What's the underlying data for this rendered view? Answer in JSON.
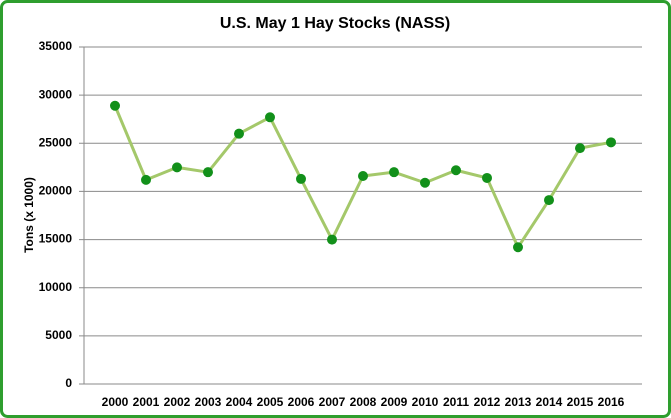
{
  "chart_data": {
    "type": "line",
    "title": "U.S. May 1 Hay Stocks (NASS)",
    "y_label": "Tons (x 1000)",
    "categories": [
      "2000",
      "2001",
      "2002",
      "2003",
      "2004",
      "2005",
      "2006",
      "2007",
      "2008",
      "2009",
      "2010",
      "2011",
      "2012",
      "2013",
      "2014",
      "2015",
      "2016"
    ],
    "values": [
      28900,
      21200,
      22500,
      22000,
      26000,
      27700,
      21300,
      15000,
      21600,
      22000,
      20900,
      22200,
      21400,
      14200,
      19100,
      24500,
      25100
    ],
    "color": "#a4c86a",
    "marker_color": "#12901a",
    "ylim": [
      0,
      35000
    ],
    "yticks": [
      0,
      5000,
      10000,
      15000,
      20000,
      25000,
      30000,
      35000
    ],
    "grid": true
  }
}
